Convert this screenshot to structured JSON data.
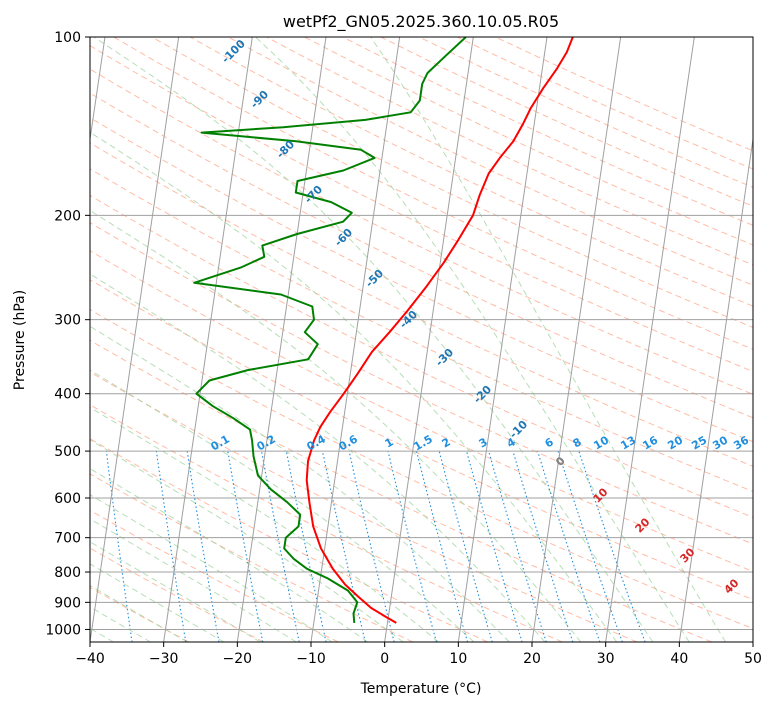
{
  "chart_data": {
    "type": "line",
    "subtype": "skew-t log-p diagram",
    "title": "wetPf2_GN05.2025.360.10.05.R05",
    "xlabel": "Temperature (°C)",
    "ylabel": "Pressure (hPa)",
    "xlim": [
      -40,
      50
    ],
    "ylim": [
      1050,
      100
    ],
    "y_scale": "log",
    "grid": true,
    "x_ticks": [
      "−40",
      "−30",
      "−20",
      "−10",
      "0",
      "10",
      "20",
      "30",
      "40",
      "50"
    ],
    "y_ticks": [
      "100",
      "200",
      "300",
      "400",
      "500",
      "600",
      "700",
      "800",
      "900",
      "1000"
    ],
    "series": [
      {
        "color": "#ff0000",
        "description": "temperature profile",
        "points": [
          [
            1.2,
            975
          ],
          [
            -0.5,
            950
          ],
          [
            -2.5,
            920
          ],
          [
            -4.5,
            880
          ],
          [
            -6.5,
            840
          ],
          [
            -8.5,
            790
          ],
          [
            -10.5,
            730
          ],
          [
            -12,
            670
          ],
          [
            -13,
            610
          ],
          [
            -13.8,
            560
          ],
          [
            -14,
            520
          ],
          [
            -13.6,
            480
          ],
          [
            -13,
            455
          ],
          [
            -12,
            430
          ],
          [
            -10.5,
            400
          ],
          [
            -9,
            370
          ],
          [
            -7.5,
            340
          ],
          [
            -5.5,
            315
          ],
          [
            -3.5,
            290
          ],
          [
            -1.5,
            265
          ],
          [
            0.5,
            240
          ],
          [
            2,
            220
          ],
          [
            3.5,
            200
          ],
          [
            4,
            185
          ],
          [
            4.8,
            170
          ],
          [
            6,
            160
          ],
          [
            7.5,
            150
          ],
          [
            8.5,
            140
          ],
          [
            9.2,
            132
          ],
          [
            10.5,
            122
          ],
          [
            12,
            113
          ],
          [
            13,
            106
          ],
          [
            13.5,
            100
          ]
        ]
      },
      {
        "color": "#008000",
        "description": "dewpoint profile",
        "points": [
          [
            -4.5,
            975
          ],
          [
            -4.8,
            940
          ],
          [
            -4.5,
            900
          ],
          [
            -6,
            860
          ],
          [
            -9,
            820
          ],
          [
            -12,
            790
          ],
          [
            -14,
            760
          ],
          [
            -15.5,
            730
          ],
          [
            -15.5,
            700
          ],
          [
            -14,
            670
          ],
          [
            -14,
            640
          ],
          [
            -16,
            610
          ],
          [
            -18.5,
            580
          ],
          [
            -20.5,
            550
          ],
          [
            -21.5,
            510
          ],
          [
            -22,
            480
          ],
          [
            -22.5,
            460
          ],
          [
            -25,
            440
          ],
          [
            -28,
            420
          ],
          [
            -30.5,
            400
          ],
          [
            -29,
            380
          ],
          [
            -24,
            365
          ],
          [
            -16,
            350
          ],
          [
            -15,
            330
          ],
          [
            -17,
            315
          ],
          [
            -16,
            300
          ],
          [
            -16.5,
            285
          ],
          [
            -21,
            272
          ],
          [
            -33,
            260
          ],
          [
            -27,
            245
          ],
          [
            -24,
            235
          ],
          [
            -24.5,
            225
          ],
          [
            -20,
            215
          ],
          [
            -14,
            205
          ],
          [
            -13,
            198
          ],
          [
            -16,
            190
          ],
          [
            -21,
            183
          ],
          [
            -21,
            175
          ],
          [
            -15,
            168
          ],
          [
            -11,
            160
          ],
          [
            -13,
            155
          ],
          [
            -22,
            150
          ],
          [
            -35,
            145
          ],
          [
            -24,
            142
          ],
          [
            -13,
            138
          ],
          [
            -7,
            134
          ],
          [
            -6,
            128
          ],
          [
            -6,
            120
          ],
          [
            -5.5,
            115
          ],
          [
            -3.5,
            108
          ],
          [
            -1,
            100
          ]
        ]
      }
    ],
    "isotherm_labels": [
      "-100",
      "-90",
      "-80",
      "-70",
      "-60",
      "-50",
      "-40",
      "-30",
      "-20",
      "-10"
    ],
    "mixing_ratio_labels": [
      "0.1",
      "0.2",
      "0.4",
      "0.6",
      "1",
      "1.5",
      "2",
      "3",
      "4",
      "6",
      "8",
      "10",
      "13",
      "16",
      "20",
      "25",
      "30",
      "36"
    ],
    "annotations": [
      "0",
      "10",
      "20",
      "30",
      "40"
    ],
    "colors": {
      "temperature": "#ff0000",
      "dewpoint": "#008000",
      "isotherm_grid": "#a0a0a0",
      "dry_adiabat": "#ffa080",
      "moist_adiabat": "#9fd39f",
      "mixing_ratio": "#1f8fe0",
      "isotherm_label": "#1f77b4",
      "annotation_red": "#d62728"
    }
  }
}
